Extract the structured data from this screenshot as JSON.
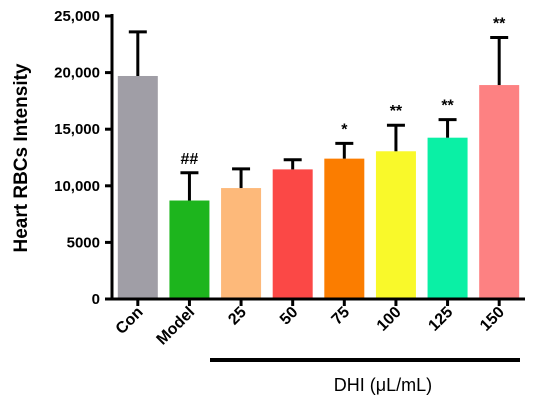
{
  "chart_data": {
    "type": "bar",
    "categories": [
      "Con",
      "Model",
      "25",
      "50",
      "75",
      "100",
      "125",
      "150"
    ],
    "values": [
      19700,
      8700,
      9800,
      11450,
      12400,
      13050,
      14250,
      18900
    ],
    "errors": [
      3900,
      2450,
      1700,
      850,
      1350,
      2300,
      1600,
      4200
    ],
    "colors": [
      "#a09ea6",
      "#1db51d",
      "#fdb97a",
      "#fb4846",
      "#fb7d00",
      "#f9f92a",
      "#0af0a5",
      "#fd8182"
    ],
    "significance": [
      "",
      "##",
      "",
      "",
      "*",
      "**",
      "**",
      "**"
    ],
    "ylabel": "Heart RBCs Intensity",
    "ylim": [
      0,
      25000
    ],
    "yticks": [
      0,
      5000,
      10000,
      15000,
      20000,
      25000
    ],
    "ytick_labels": [
      "0",
      "5000",
      "10,000",
      "15,000",
      "20,000",
      "25,000"
    ],
    "group_label": "DHI (μL/mL)",
    "grid": false,
    "legend": "none"
  }
}
